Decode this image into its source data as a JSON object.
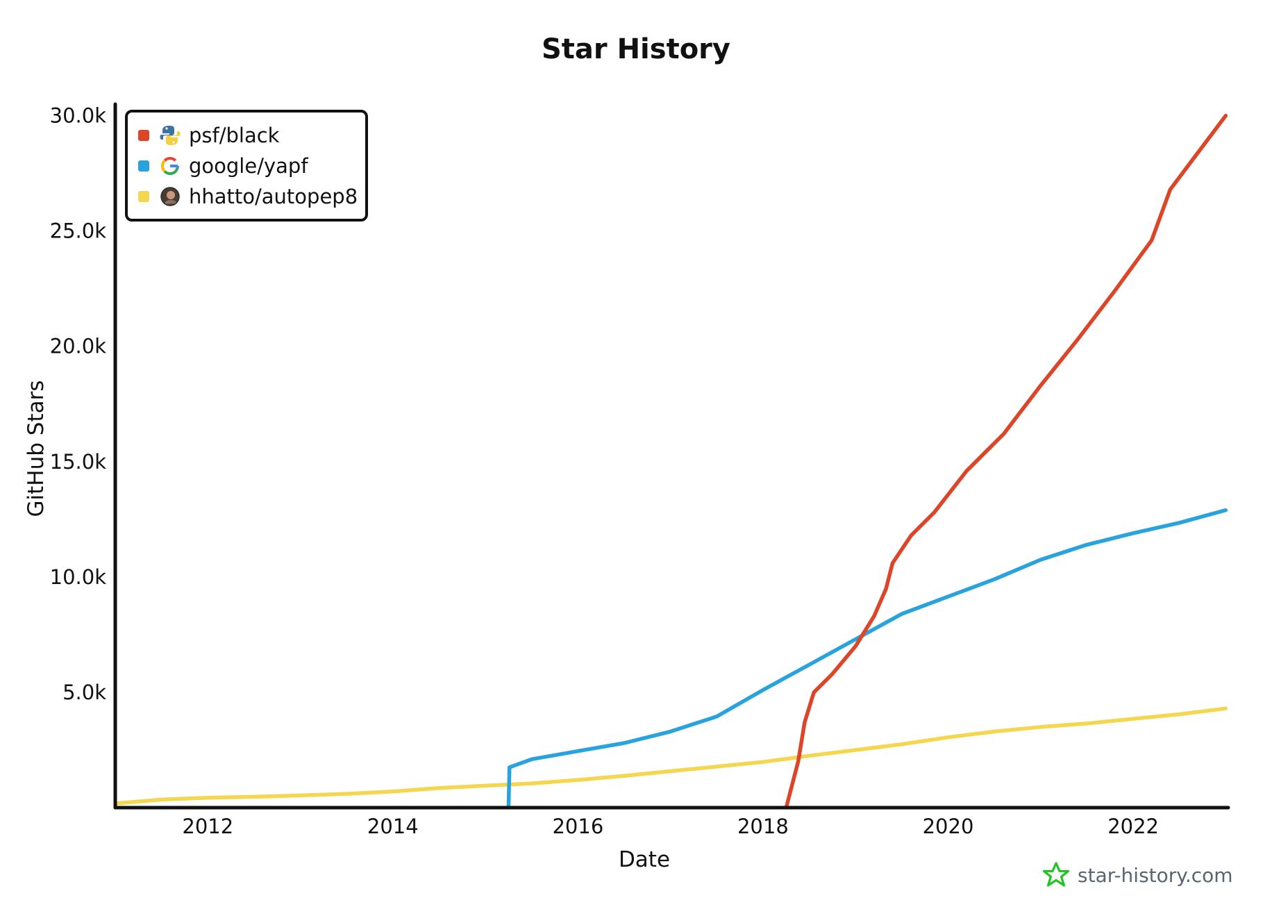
{
  "chart_data": {
    "type": "line",
    "title": "Star History",
    "xlabel": "Date",
    "ylabel": "GitHub Stars",
    "x_range": [
      2011.0,
      2023.05
    ],
    "ylim": [
      0,
      30500
    ],
    "x_ticks": [
      {
        "value": 2012,
        "label": "2012"
      },
      {
        "value": 2014,
        "label": "2014"
      },
      {
        "value": 2016,
        "label": "2016"
      },
      {
        "value": 2018,
        "label": "2018"
      },
      {
        "value": 2020,
        "label": "2020"
      },
      {
        "value": 2022,
        "label": "2022"
      }
    ],
    "y_ticks": [
      {
        "value": 5000,
        "label": "5.0k"
      },
      {
        "value": 10000,
        "label": "10.0k"
      },
      {
        "value": 15000,
        "label": "15.0k"
      },
      {
        "value": 20000,
        "label": "20.0k"
      },
      {
        "value": 25000,
        "label": "25.0k"
      },
      {
        "value": 30000,
        "label": "30.0k"
      }
    ],
    "grid": false,
    "legend_position": "top-left",
    "series": [
      {
        "name": "psf/black",
        "color": "#dd4528",
        "icon": "python-logo-icon",
        "x": [
          2018.25,
          2018.38,
          2018.45,
          2018.55,
          2018.75,
          2019.0,
          2019.2,
          2019.33,
          2019.4,
          2019.6,
          2019.85,
          2020.2,
          2020.6,
          2021.0,
          2021.4,
          2021.8,
          2022.2,
          2022.4,
          2022.7,
          2023.0
        ],
        "y": [
          0,
          2000,
          3700,
          5000,
          5800,
          7000,
          8300,
          9500,
          10600,
          11800,
          12800,
          14600,
          16200,
          18300,
          20300,
          22400,
          24600,
          26800,
          28400,
          30000
        ]
      },
      {
        "name": "google/yapf",
        "color": "#28a3dd",
        "icon": "google-logo-icon",
        "x": [
          2015.25,
          2015.26,
          2015.5,
          2016.0,
          2016.5,
          2017.0,
          2017.5,
          2018.0,
          2018.5,
          2019.0,
          2019.5,
          2020.0,
          2020.5,
          2021.0,
          2021.5,
          2022.0,
          2022.5,
          2023.0
        ],
        "y": [
          0,
          1750,
          2100,
          2450,
          2800,
          3300,
          3950,
          5100,
          6200,
          7300,
          8400,
          9150,
          9900,
          10750,
          11400,
          11900,
          12350,
          12900
        ]
      },
      {
        "name": "hhatto/autopep8",
        "color": "#f4d64f",
        "icon": "hhatto-avatar-icon",
        "x": [
          2011.0,
          2011.5,
          2012.0,
          2012.5,
          2013.0,
          2013.5,
          2014.0,
          2014.5,
          2015.0,
          2015.5,
          2016.0,
          2016.5,
          2017.0,
          2017.5,
          2018.0,
          2018.5,
          2019.0,
          2019.5,
          2020.0,
          2020.5,
          2021.0,
          2021.5,
          2022.0,
          2022.5,
          2023.0
        ],
        "y": [
          180,
          350,
          430,
          470,
          530,
          600,
          700,
          850,
          950,
          1050,
          1200,
          1380,
          1580,
          1780,
          1980,
          2250,
          2500,
          2750,
          3050,
          3300,
          3500,
          3650,
          3850,
          4050,
          4300
        ]
      }
    ]
  },
  "watermark": {
    "text": "star-history.com",
    "icon": "star-history-logo-icon",
    "color": "#22c322"
  }
}
